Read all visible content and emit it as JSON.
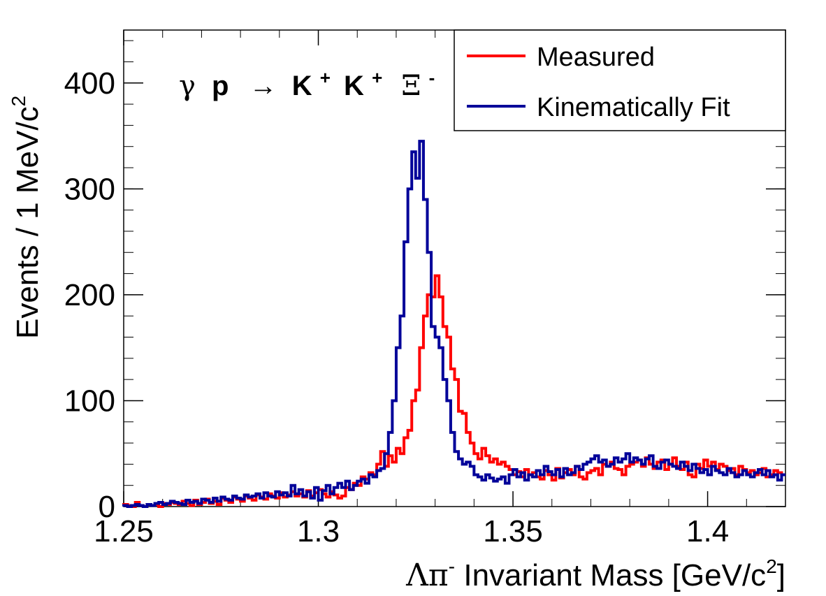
{
  "chart_data": {
    "type": "step-histogram",
    "annotation": {
      "gamma": "γ",
      "p": "p",
      "arrow": "→",
      "K1": "K",
      "plus1": "+",
      "K2": "K",
      "plus2": "+",
      "Xi": "Ξ",
      "minus": "-"
    },
    "xlabel": {
      "lambda_pi": "Λπ",
      "superscript": "-",
      "rest": " Invariant Mass [GeV/c",
      "sq": "2",
      "close": "]"
    },
    "ylabel": {
      "main": "Events / 1 MeV/c",
      "sq": "2"
    },
    "xlim": [
      1.25,
      1.42
    ],
    "ylim": [
      0,
      450
    ],
    "bin_width": 0.001,
    "x_ticks": [
      {
        "value": 1.25,
        "label": "1.25"
      },
      {
        "value": 1.3,
        "label": "1.3"
      },
      {
        "value": 1.35,
        "label": "1.35"
      },
      {
        "value": 1.4,
        "label": "1.4"
      }
    ],
    "y_ticks": [
      {
        "value": 0,
        "label": "0"
      },
      {
        "value": 100,
        "label": "100"
      },
      {
        "value": 200,
        "label": "200"
      },
      {
        "value": 300,
        "label": "300"
      },
      {
        "value": 400,
        "label": "400"
      }
    ],
    "legend": {
      "position": "top-right"
    },
    "series": [
      {
        "name": "Measured",
        "color": "#ff0000",
        "values": [
          2,
          1,
          0,
          4,
          1,
          0,
          2,
          1,
          2,
          0,
          3,
          2,
          4,
          3,
          2,
          5,
          3,
          1,
          6,
          2,
          4,
          7,
          3,
          5,
          2,
          8,
          6,
          4,
          9,
          7,
          5,
          10,
          8,
          6,
          11,
          9,
          7,
          12,
          10,
          8,
          13,
          9,
          11,
          14,
          10,
          12,
          9,
          15,
          10,
          13,
          16,
          12,
          9,
          14,
          11,
          8,
          10,
          18,
          16,
          22,
          20,
          28,
          26,
          32,
          30,
          40,
          52,
          38,
          48,
          42,
          55,
          50,
          65,
          72,
          100,
          110,
          150,
          180,
          200,
          198,
          218,
          198,
          170,
          160,
          130,
          120,
          90,
          88,
          70,
          60,
          50,
          45,
          55,
          48,
          42,
          45,
          40,
          42,
          38,
          35,
          30,
          33,
          28,
          35,
          30,
          32,
          28,
          26,
          34,
          30,
          25,
          36,
          27,
          32,
          35,
          30,
          38,
          28,
          26,
          32,
          34,
          36,
          30,
          40,
          38,
          42,
          36,
          35,
          30,
          38,
          40,
          42,
          44,
          38,
          46,
          40,
          36,
          42,
          44,
          35,
          40,
          46,
          38,
          35,
          42,
          30,
          28,
          40,
          36,
          44,
          38,
          42,
          35,
          40,
          38,
          34,
          36,
          30,
          38,
          35,
          32,
          34,
          30,
          32,
          36,
          28,
          30,
          34,
          32,
          30
        ],
        "n_bins": 170
      },
      {
        "name": "Kinematically Fit",
        "color": "#000099",
        "values": [
          1,
          0,
          1,
          2,
          1,
          0,
          2,
          1,
          3,
          4,
          2,
          3,
          5,
          4,
          3,
          2,
          6,
          4,
          5,
          3,
          7,
          6,
          4,
          8,
          5,
          9,
          7,
          6,
          10,
          8,
          7,
          11,
          9,
          10,
          12,
          8,
          13,
          10,
          9,
          14,
          11,
          13,
          10,
          20,
          12,
          16,
          10,
          14,
          8,
          18,
          6,
          15,
          20,
          12,
          18,
          22,
          18,
          24,
          16,
          20,
          24,
          26,
          22,
          30,
          28,
          34,
          36,
          50,
          70,
          100,
          150,
          180,
          250,
          300,
          335,
          310,
          345,
          290,
          240,
          170,
          160,
          150,
          120,
          100,
          70,
          52,
          45,
          40,
          42,
          38,
          30,
          28,
          25,
          30,
          27,
          24,
          26,
          28,
          22,
          30,
          35,
          28,
          32,
          25,
          30,
          28,
          34,
          30,
          38,
          33,
          30,
          35,
          28,
          36,
          30,
          32,
          38,
          35,
          40,
          42,
          45,
          48,
          42,
          44,
          38,
          40,
          46,
          42,
          45,
          50,
          42,
          46,
          44,
          40,
          45,
          48,
          38,
          36,
          42,
          44,
          40,
          38,
          36,
          42,
          38,
          34,
          40,
          36,
          32,
          35,
          30,
          38,
          34,
          32,
          30,
          36,
          32,
          28,
          30,
          34,
          30,
          28,
          32,
          35,
          30,
          34,
          28,
          30,
          25,
          30
        ],
        "n_bins": 170
      }
    ]
  }
}
